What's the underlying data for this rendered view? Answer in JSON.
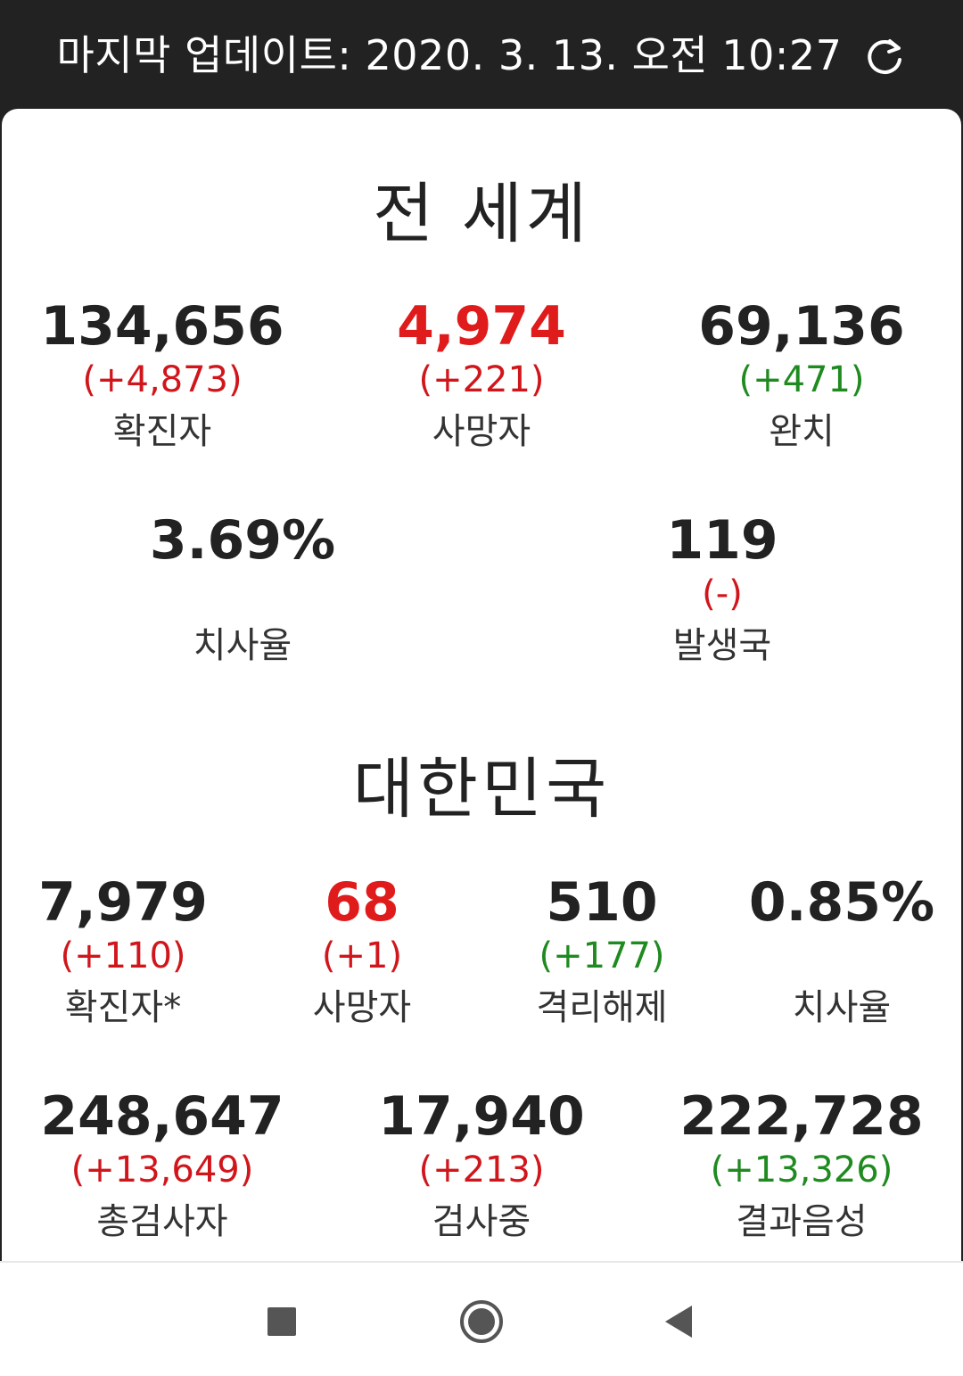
{
  "header": {
    "update_text": "마지막 업데이트: 2020. 3. 13. 오전 10:27",
    "refresh_icon": "refresh-icon"
  },
  "world": {
    "title": "전 세계",
    "confirmed": {
      "value": "134,656",
      "delta": "(+4,873)",
      "label": "확진자"
    },
    "deaths": {
      "value": "4,974",
      "delta": "(+221)",
      "label": "사망자"
    },
    "recovered": {
      "value": "69,136",
      "delta": "(+471)",
      "label": "완치"
    },
    "fatality": {
      "value": "3.69%",
      "label": "치사율"
    },
    "countries": {
      "value": "119",
      "delta": "(-)",
      "label": "발생국"
    }
  },
  "korea": {
    "title": "대한민국",
    "confirmed": {
      "value": "7,979",
      "delta": "(+110)",
      "label": "확진자*"
    },
    "deaths": {
      "value": "68",
      "delta": "(+1)",
      "label": "사망자"
    },
    "released": {
      "value": "510",
      "delta": "(+177)",
      "label": "격리해제"
    },
    "fatality": {
      "value": "0.85%",
      "label": "치사율"
    },
    "tested": {
      "value": "248,647",
      "delta": "(+13,649)",
      "label": "총검사자"
    },
    "testing": {
      "value": "17,940",
      "delta": "(+213)",
      "label": "검사중"
    },
    "negative": {
      "value": "222,728",
      "delta": "(+13,326)",
      "label": "결과음성"
    }
  },
  "colors": {
    "increase": "#d0161b",
    "recovery": "#1f8a1f",
    "death_value": "#e01b1b",
    "bar": "#222222"
  },
  "navigation": {
    "recents_icon": "square-icon",
    "home_icon": "circle-icon",
    "back_icon": "triangle-back-icon"
  }
}
